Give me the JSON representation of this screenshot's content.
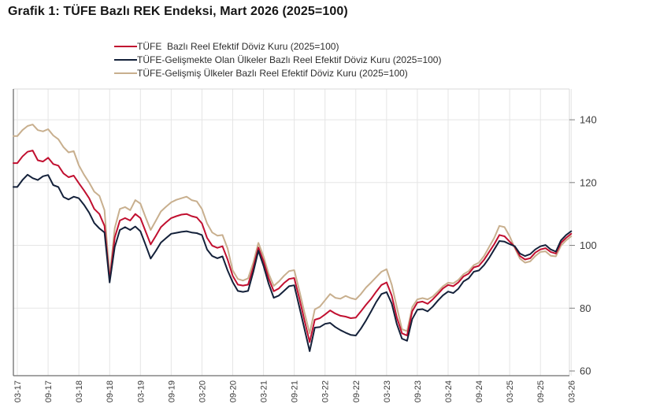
{
  "page": {
    "title": "Grafik 1: TÜFE Bazlı REK Endeksi, Mart 2026 (2025=100)"
  },
  "legend": {
    "items": [
      {
        "label": "TÜFE  Bazlı Reel Efektif Döviz Kuru (2025=100)",
        "color": "#C11030"
      },
      {
        "label": "TÜFE-Gelişmekte Olan Ülkeler Bazlı Reel Efektif Döviz Kuru (2025=100)",
        "color": "#14213A"
      },
      {
        "label": "TÜFE-Gelişmiş Ülkeler Bazlı Reel Efektif Döviz Kuru (2025=100)",
        "color": "#C8AF8E"
      }
    ]
  },
  "style": {
    "grid_color": "#E5E5E5",
    "border_color": "#D9D9D9",
    "axis_color": "#6E6E6E",
    "tick_color": "#7F7F7F"
  },
  "chart_data": {
    "type": "line",
    "title": "Grafik 1: TÜFE Bazlı REK Endeksi, Mart 2026 (2025=100)",
    "x_start": "2017-03",
    "x_freq": "monthly",
    "x_tick_labels": [
      "03-17",
      "09-17",
      "03-18",
      "09-18",
      "03-19",
      "09-19",
      "03-20",
      "09-20",
      "03-21",
      "09-21",
      "03-22",
      "09-22",
      "03-23",
      "09-23",
      "03-24",
      "09-24",
      "03-25",
      "09-25",
      "03-26"
    ],
    "xlabel": "",
    "ylabel": "",
    "y_ticks": [
      60,
      80,
      100,
      120,
      140
    ],
    "ylim": [
      58.5,
      149.8
    ],
    "grid": true,
    "legend_position": "top",
    "series": [
      {
        "name": "TÜFE  Bazlı Reel Efektif Döviz Kuru (2025=100)",
        "color": "#C11030",
        "values": [
          126.2,
          128.3,
          129.8,
          130.2,
          127.1,
          126.7,
          127.9,
          125.9,
          125.4,
          122.9,
          121.7,
          122.2,
          119.8,
          117.5,
          115.0,
          111.6,
          110.0,
          106.2,
          88.9,
          102.5,
          107.9,
          108.7,
          107.9,
          110.0,
          108.7,
          104.5,
          100.3,
          103.0,
          105.8,
          107.3,
          108.7,
          109.3,
          109.8,
          110.0,
          109.3,
          108.9,
          107.0,
          102.4,
          99.9,
          99.2,
          99.7,
          95.5,
          90.3,
          87.5,
          87.2,
          87.5,
          93.0,
          99.3,
          95.0,
          89.5,
          85.4,
          86.3,
          88.0,
          89.3,
          89.6,
          83.0,
          76.0,
          69.2,
          76.3,
          76.8,
          78.0,
          79.3,
          78.3,
          77.6,
          77.3,
          76.8,
          77.0,
          79.0,
          81.1,
          83.0,
          85.3,
          87.4,
          88.2,
          84.0,
          77.0,
          72.0,
          71.3,
          79.0,
          81.8,
          82.1,
          81.4,
          82.8,
          84.5,
          86.3,
          87.4,
          87.0,
          88.2,
          90.1,
          91.0,
          93.0,
          93.5,
          95.4,
          97.9,
          100.4,
          103.3,
          102.9,
          101.2,
          99.5,
          96.6,
          95.5,
          95.9,
          97.7,
          98.7,
          99.1,
          97.9,
          97.4,
          100.8,
          102.4,
          103.7
        ]
      },
      {
        "name": "TÜFE-Gelişmekte Olan Ülkeler Bazlı Reel Efektif Döviz Kuru (2025=100)",
        "color": "#14213A",
        "values": [
          118.6,
          120.8,
          122.5,
          121.4,
          120.8,
          122.0,
          122.4,
          119.2,
          118.6,
          115.4,
          114.6,
          115.5,
          115.0,
          112.9,
          110.4,
          107.1,
          105.4,
          104.1,
          88.2,
          99.5,
          104.9,
          105.8,
          104.9,
          106.0,
          104.5,
          100.2,
          95.8,
          98.2,
          100.9,
          102.3,
          103.7,
          104.0,
          104.3,
          104.5,
          104.1,
          103.9,
          103.3,
          98.7,
          96.6,
          95.9,
          96.5,
          92.0,
          88.3,
          85.5,
          85.2,
          85.5,
          91.5,
          98.3,
          93.5,
          87.8,
          83.3,
          84.0,
          85.5,
          87.0,
          87.3,
          80.3,
          73.3,
          66.3,
          73.8,
          74.0,
          75.0,
          75.3,
          74.0,
          73.0,
          72.2,
          71.5,
          71.3,
          73.5,
          76.1,
          79.0,
          82.0,
          84.5,
          85.1,
          81.5,
          74.9,
          70.3,
          69.6,
          76.5,
          79.5,
          79.7,
          79.0,
          80.5,
          82.4,
          84.1,
          85.3,
          84.8,
          86.2,
          88.5,
          89.5,
          91.6,
          92.0,
          93.7,
          96.0,
          98.7,
          101.4,
          101.2,
          100.4,
          99.7,
          97.4,
          96.6,
          97.2,
          98.7,
          99.7,
          100.1,
          98.7,
          98.0,
          101.6,
          103.3,
          104.5
        ]
      },
      {
        "name": "TÜFE-Gelişmiş Ülkeler Bazlı Reel Efektif Döviz Kuru (2025=100)",
        "color": "#C8AF8E",
        "values": [
          134.8,
          136.7,
          138.0,
          138.5,
          136.7,
          136.3,
          137.0,
          135.0,
          133.8,
          131.3,
          129.6,
          130.0,
          125.5,
          122.5,
          120.0,
          117.1,
          115.8,
          111.2,
          89.9,
          105.5,
          111.6,
          112.2,
          111.2,
          114.4,
          113.3,
          109.0,
          104.9,
          107.8,
          110.8,
          112.3,
          113.7,
          114.5,
          115.0,
          115.5,
          114.4,
          114.0,
          111.6,
          107.0,
          104.1,
          103.1,
          103.3,
          99.0,
          92.0,
          89.3,
          88.8,
          89.5,
          94.5,
          100.8,
          96.5,
          91.0,
          87.1,
          88.5,
          90.3,
          91.8,
          92.1,
          85.5,
          78.5,
          72.0,
          79.6,
          80.5,
          82.5,
          84.5,
          83.3,
          83.0,
          83.9,
          83.2,
          82.8,
          84.5,
          86.6,
          88.2,
          89.9,
          91.6,
          92.4,
          87.5,
          80.3,
          73.3,
          72.7,
          80.3,
          82.8,
          83.2,
          82.8,
          83.7,
          85.3,
          87.0,
          88.1,
          87.9,
          89.0,
          90.8,
          91.8,
          93.7,
          94.5,
          96.6,
          99.5,
          102.4,
          106.2,
          105.8,
          102.9,
          99.1,
          95.8,
          94.5,
          94.9,
          96.6,
          97.9,
          98.1,
          96.7,
          96.5,
          99.9,
          101.6,
          102.9
        ]
      }
    ]
  }
}
